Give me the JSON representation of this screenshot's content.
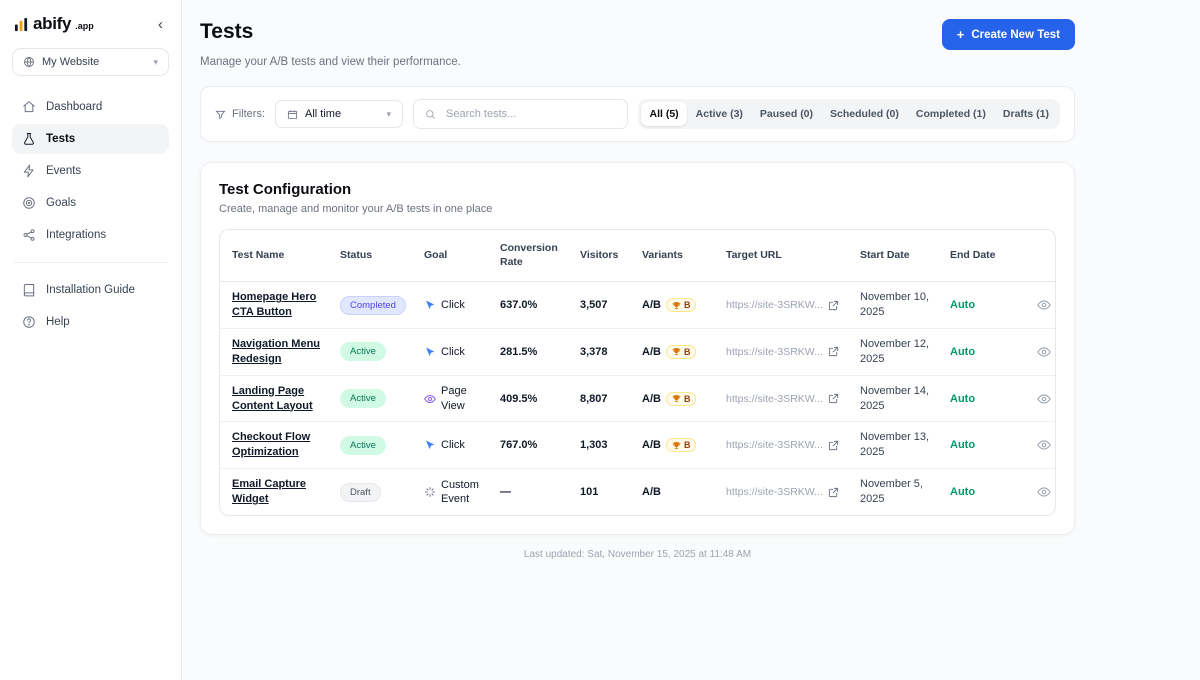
{
  "sidebar": {
    "logo_text": "abify",
    "logo_suffix": ".app",
    "collapse_icon": "‹",
    "site_selector": {
      "label": "My Website"
    },
    "items": [
      {
        "label": "Dashboard"
      },
      {
        "label": "Tests"
      },
      {
        "label": "Events"
      },
      {
        "label": "Goals"
      },
      {
        "label": "Integrations"
      }
    ],
    "secondary_items": [
      {
        "label": "Installation Guide"
      },
      {
        "label": "Help"
      }
    ]
  },
  "header": {
    "title": "Tests",
    "subtitle": "Manage your A/B tests and view their performance.",
    "create_button": "Create New Test"
  },
  "filters": {
    "label": "Filters:",
    "time_range": "All time",
    "search_placeholder": "Search tests...",
    "tabs": [
      {
        "label": "All (5)",
        "active": true
      },
      {
        "label": "Active (3)",
        "active": false
      },
      {
        "label": "Paused (0)",
        "active": false
      },
      {
        "label": "Scheduled (0)",
        "active": false
      },
      {
        "label": "Completed (1)",
        "active": false
      },
      {
        "label": "Drafts (1)",
        "active": false
      }
    ]
  },
  "table_card": {
    "title": "Test Configuration",
    "subtitle": "Create, manage and monitor your A/B tests in one place",
    "columns": [
      "Test Name",
      "Status",
      "Goal",
      "Conversion Rate",
      "Visitors",
      "Variants",
      "Target URL",
      "Start Date",
      "End Date"
    ],
    "rows": [
      {
        "name": "Homepage Hero CTA Button",
        "status": "Completed",
        "status_type": "completed",
        "goal": "Click",
        "goal_icon": "cursor",
        "conversion_rate": "637.0%",
        "visitors": "3,507",
        "variants": "A/B",
        "winner": "B",
        "target_url": "https://site-3SRKW...",
        "start_date": "November 10, 2025",
        "end_date": "Auto"
      },
      {
        "name": "Navigation Menu Redesign",
        "status": "Active",
        "status_type": "active",
        "goal": "Click",
        "goal_icon": "cursor",
        "conversion_rate": "281.5%",
        "visitors": "3,378",
        "variants": "A/B",
        "winner": "B",
        "target_url": "https://site-3SRKW...",
        "start_date": "November 12, 2025",
        "end_date": "Auto"
      },
      {
        "name": "Landing Page Content Layout",
        "status": "Active",
        "status_type": "active",
        "goal": "Page View",
        "goal_icon": "eye",
        "conversion_rate": "409.5%",
        "visitors": "8,807",
        "variants": "A/B",
        "winner": "B",
        "target_url": "https://site-3SRKW...",
        "start_date": "November 14, 2025",
        "end_date": "Auto"
      },
      {
        "name": "Checkout Flow Optimization",
        "status": "Active",
        "status_type": "active",
        "goal": "Click",
        "goal_icon": "cursor",
        "conversion_rate": "767.0%",
        "visitors": "1,303",
        "variants": "A/B",
        "winner": "B",
        "target_url": "https://site-3SRKW...",
        "start_date": "November 13, 2025",
        "end_date": "Auto"
      },
      {
        "name": "Email Capture Widget",
        "status": "Draft",
        "status_type": "draft",
        "goal": "Custom Event",
        "goal_icon": "custom",
        "conversion_rate": "—",
        "visitors": "101",
        "variants": "A/B",
        "winner": "",
        "target_url": "https://site-3SRKW...",
        "start_date": "November 5, 2025",
        "end_date": "Auto"
      }
    ]
  },
  "footer": {
    "last_updated": "Last updated: Sat, November 15, 2025 at 11:48 AM"
  }
}
